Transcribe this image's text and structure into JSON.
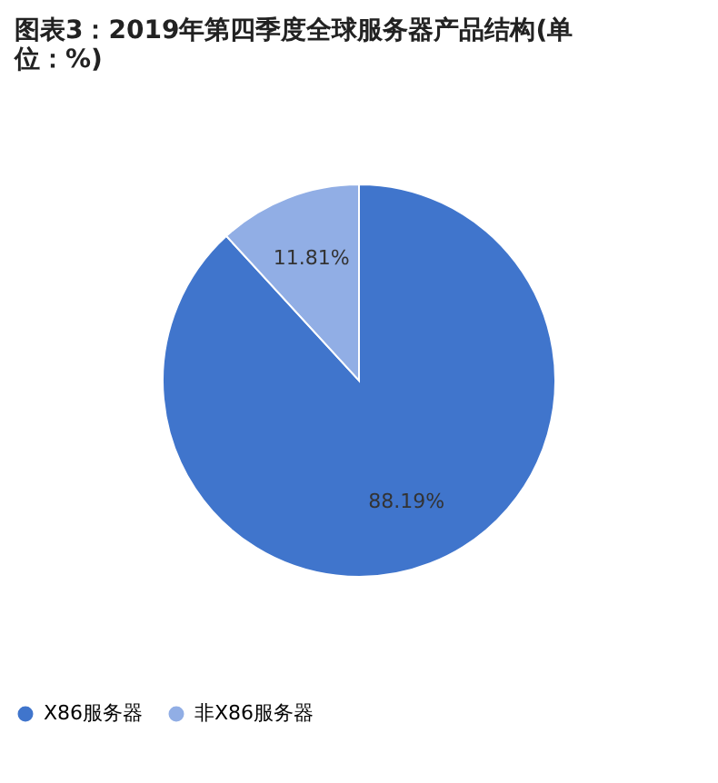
{
  "chart_data": {
    "type": "pie",
    "title": "图表3：2019年第四季度全球服务器产品结构(单位：%)",
    "categories": [
      "X86服务器",
      "非X86服务器"
    ],
    "values": [
      88.19,
      11.81
    ],
    "colors": [
      "#4075cc",
      "#91aee5"
    ],
    "value_labels": [
      "88.19%",
      "11.81%"
    ],
    "legend": "bottom"
  }
}
